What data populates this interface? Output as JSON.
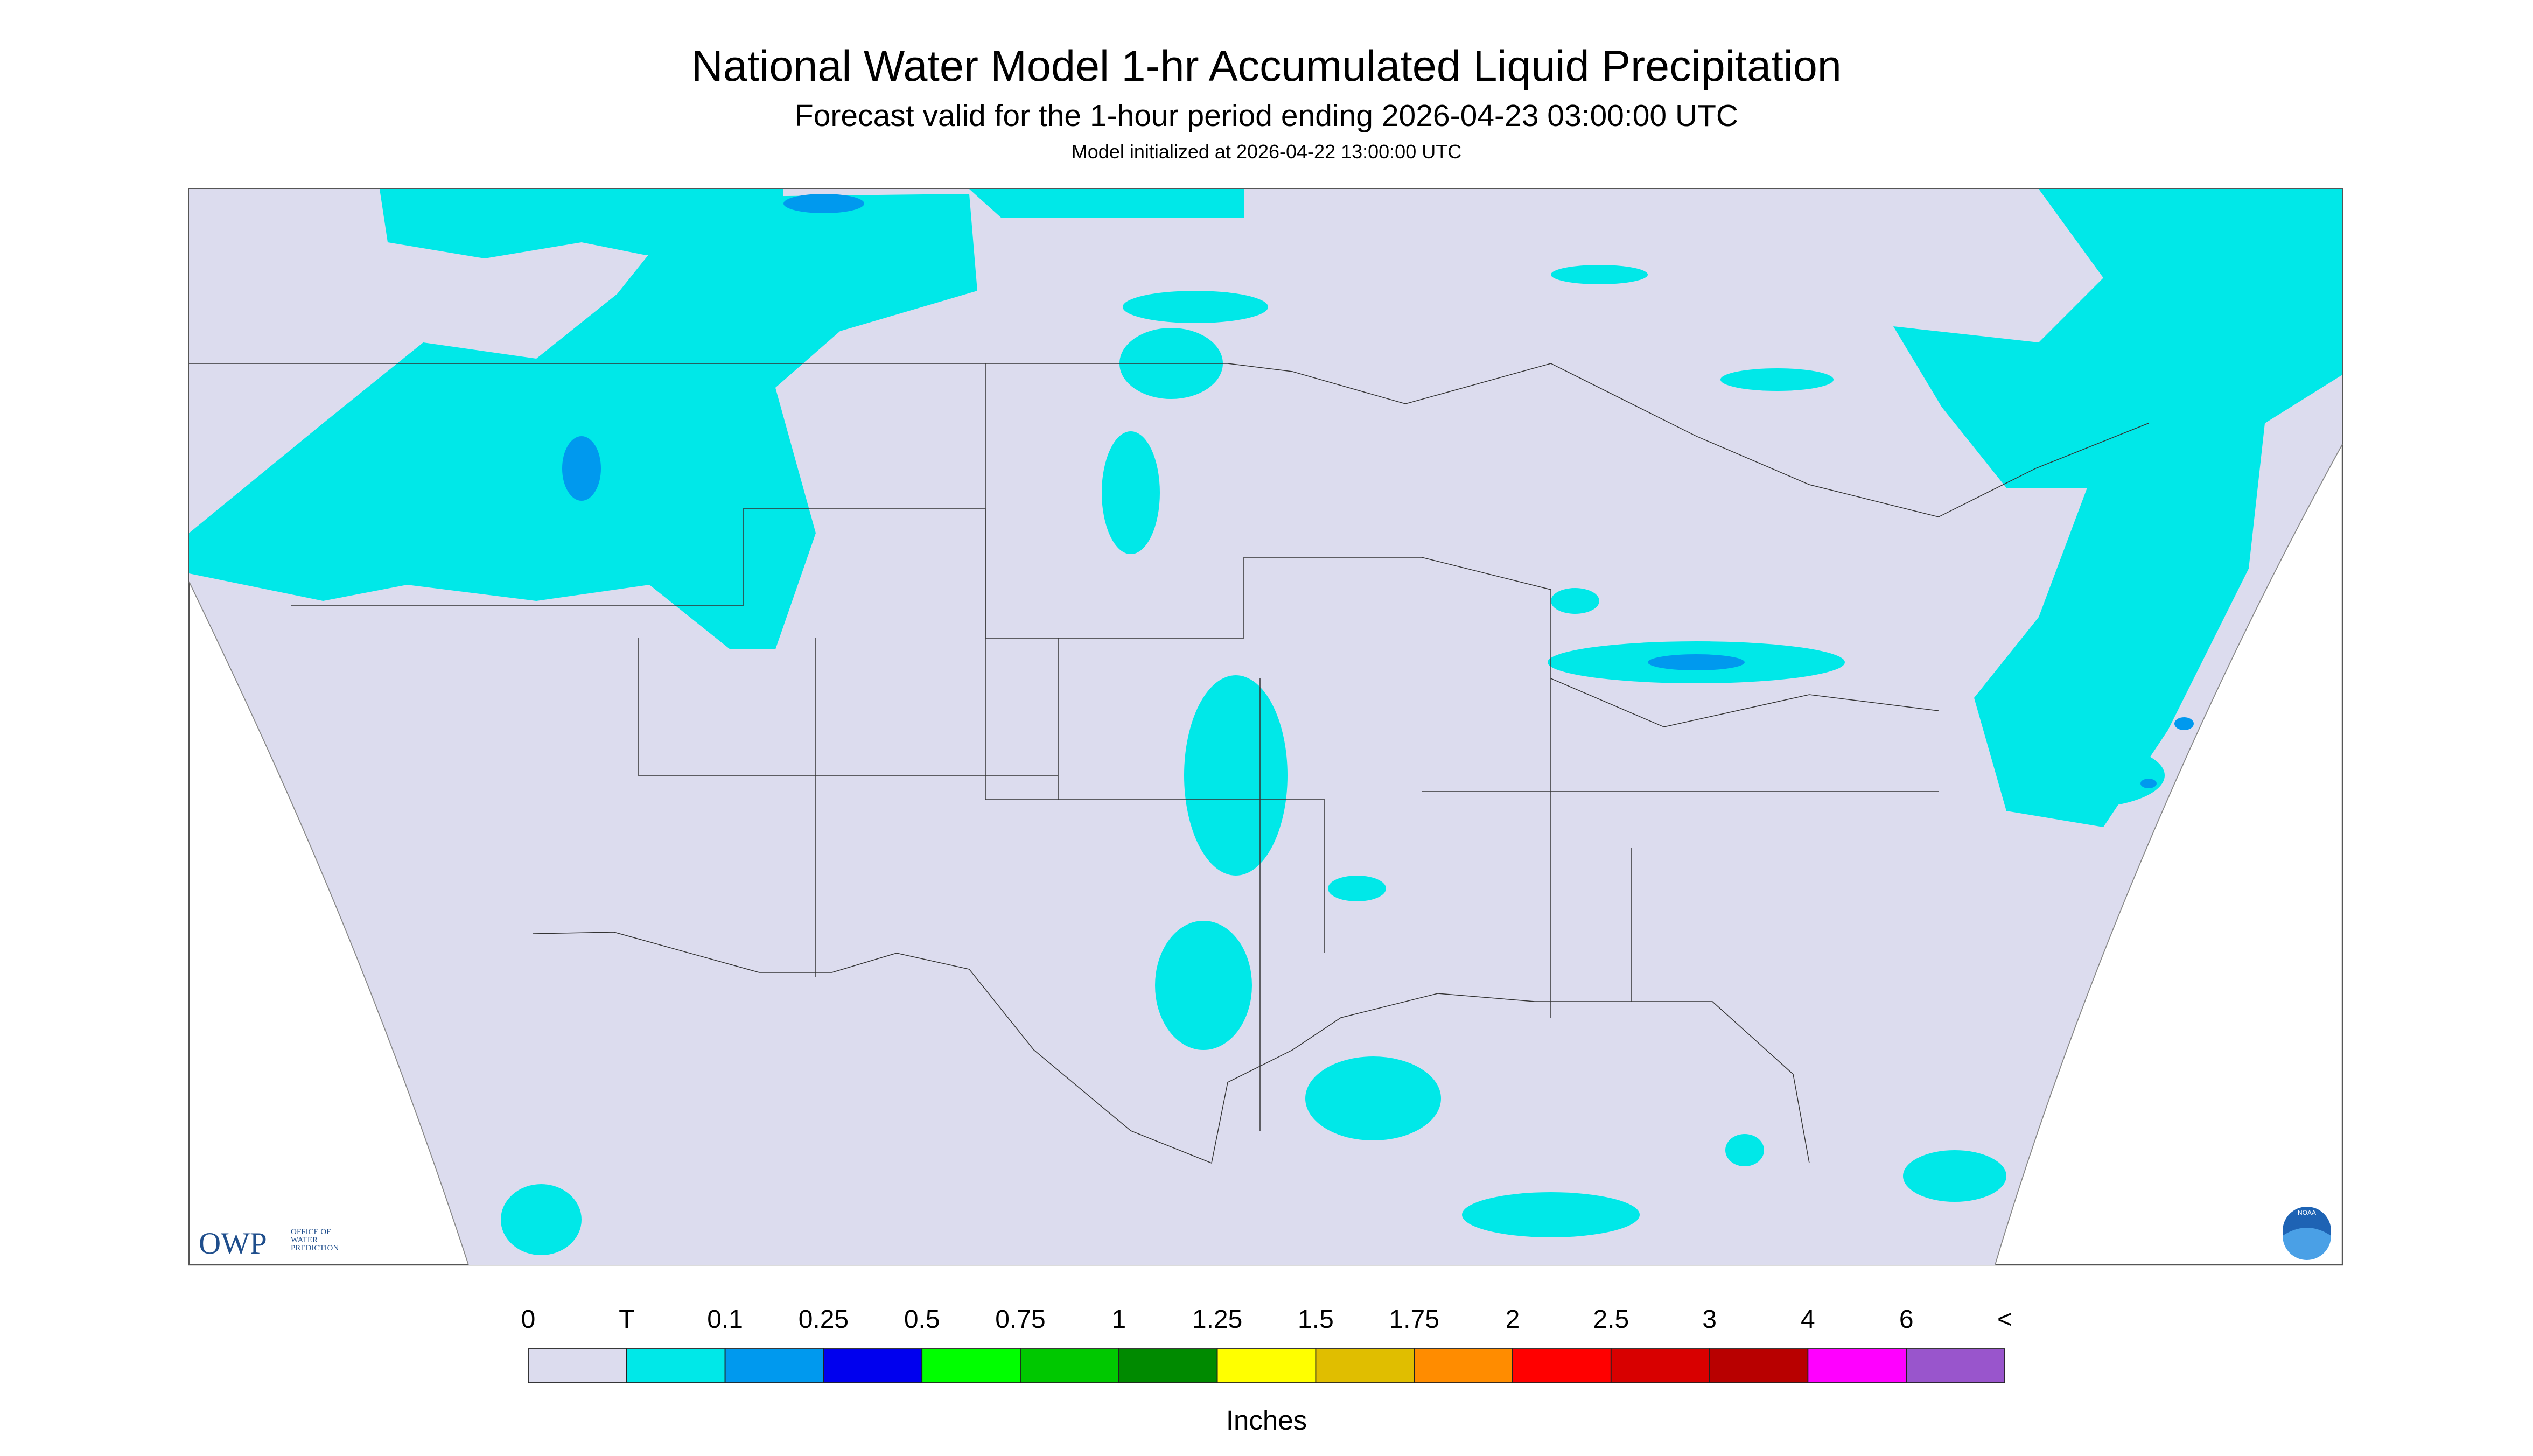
{
  "header": {
    "title": "National Water Model 1-hr Accumulated Liquid Precipitation",
    "subtitle": "Forecast valid for the 1-hour period ending 2026-04-23 03:00:00 UTC",
    "note": "Model initialized at 2026-04-22 13:00:00 UTC"
  },
  "logos": {
    "owp": "OWP",
    "owp_lines": [
      "OFFICE OF",
      "WATER",
      "PREDICTION"
    ],
    "noaa": "NOAA"
  },
  "legend": {
    "labels": [
      "0",
      "T",
      "0.1",
      "0.25",
      "0.5",
      "0.75",
      "1",
      "1.25",
      "1.5",
      "1.75",
      "2",
      "2.5",
      "3",
      "4",
      "6",
      "<"
    ],
    "colors": [
      "#dcdcee",
      "#00e8e8",
      "#0099ee",
      "#0000ee",
      "#00ff00",
      "#00c800",
      "#008a00",
      "#ffff00",
      "#e0be00",
      "#ff8c00",
      "#ff0000",
      "#d80000",
      "#b80000",
      "#ff00ff",
      "#9955cc"
    ],
    "unit": "Inches"
  }
}
